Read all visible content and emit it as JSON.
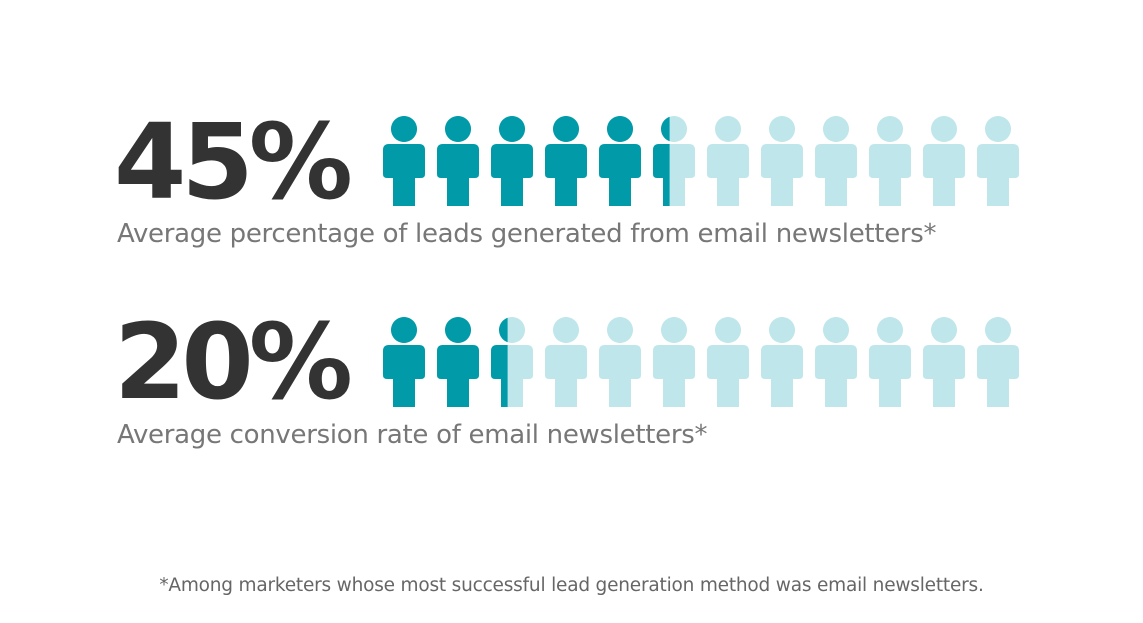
{
  "chart_data": [
    {
      "type": "pictograph",
      "value_label": "45%",
      "caption": "Average percentage of leads generated from email newsletters*",
      "value": 45,
      "icon_count": 12,
      "icon": "person-icon",
      "filled_color": "#009aa8",
      "empty_color": "#bfe6ea"
    },
    {
      "type": "pictograph",
      "value_label": "20%",
      "caption": "Average conversion rate of email newsletters*",
      "value": 20,
      "icon_count": 12,
      "icon": "person-icon",
      "filled_color": "#009aa8",
      "empty_color": "#bfe6ea"
    }
  ],
  "footnote": "*Among marketers whose most successful lead generation method was email newsletters."
}
